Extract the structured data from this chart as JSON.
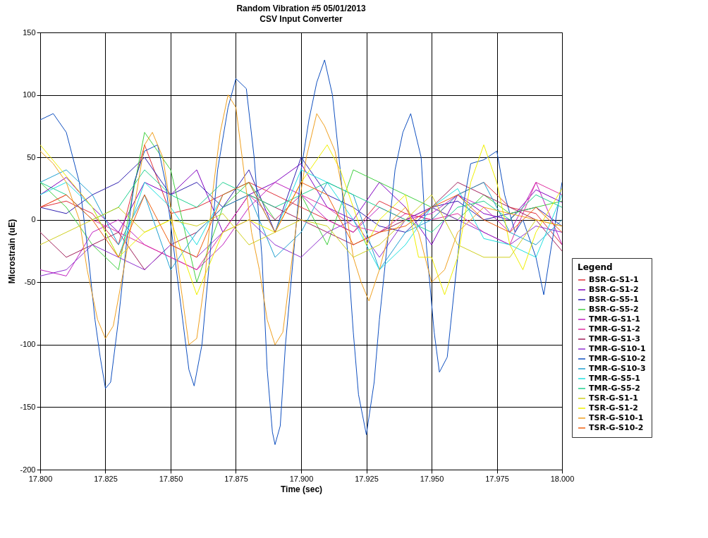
{
  "chart_data": {
    "type": "line",
    "title": "Random Vibration #5 05/01/2013",
    "subtitle": "CSV Input Converter",
    "xlabel": "Time (sec)",
    "ylabel": "Microstrain (uE)",
    "legend_title": "Legend",
    "xlim": [
      17.8,
      18.0
    ],
    "ylim": [
      -200,
      150
    ],
    "xticks": [
      {
        "value": 17.8,
        "label": "17.800"
      },
      {
        "value": 17.825,
        "label": "17.825"
      },
      {
        "value": 17.85,
        "label": "17.850"
      },
      {
        "value": 17.875,
        "label": "17.875"
      },
      {
        "value": 17.9,
        "label": "17.900"
      },
      {
        "value": 17.925,
        "label": "17.925"
      },
      {
        "value": 17.95,
        "label": "17.950"
      },
      {
        "value": 17.975,
        "label": "17.975"
      },
      {
        "value": 18.0,
        "label": "18.000"
      }
    ],
    "yticks": [
      -200,
      -150,
      -100,
      -50,
      0,
      50,
      100,
      150
    ],
    "grid": true,
    "legend": "bottom right",
    "line_style": "solid",
    "x": [
      17.8,
      17.81,
      17.82,
      17.83,
      17.84,
      17.85,
      17.86,
      17.87,
      17.88,
      17.89,
      17.9,
      17.91,
      17.92,
      17.93,
      17.94,
      17.95,
      17.96,
      17.97,
      17.98,
      17.99,
      18.0
    ],
    "series": [
      {
        "name": "BSR-G-S1-1",
        "color": "#e0303a",
        "values": [
          10,
          15,
          5,
          -20,
          60,
          5,
          10,
          20,
          30,
          20,
          10,
          0,
          -10,
          15,
          5,
          0,
          20,
          30,
          10,
          5,
          -20
        ]
      },
      {
        "name": "BSR-G-S1-2",
        "color": "#8000c0",
        "values": [
          20,
          34,
          10,
          -10,
          30,
          20,
          40,
          -10,
          20,
          30,
          45,
          10,
          0,
          30,
          10,
          -20,
          20,
          5,
          0,
          24,
          14
        ]
      },
      {
        "name": "BSR-G-S5-1",
        "color": "#3020b0",
        "values": [
          10,
          5,
          20,
          30,
          50,
          20,
          30,
          10,
          40,
          -10,
          50,
          20,
          10,
          -5,
          -10,
          10,
          15,
          0,
          5,
          10,
          -5
        ]
      },
      {
        "name": "BSR-G-S5-2",
        "color": "#40d040",
        "values": [
          30,
          10,
          -20,
          -40,
          70,
          40,
          -50,
          10,
          30,
          0,
          20,
          -20,
          40,
          30,
          20,
          10,
          0,
          20,
          5,
          10,
          15
        ]
      },
      {
        "name": "TMR-G-S1-1",
        "color": "#c020c0",
        "values": [
          -40,
          -45,
          -10,
          0,
          -20,
          -30,
          -40,
          -20,
          10,
          30,
          20,
          0,
          -10,
          10,
          0,
          5,
          20,
          10,
          -10,
          30,
          -20
        ]
      },
      {
        "name": "TMR-G-S1-2",
        "color": "#e030a0",
        "values": [
          10,
          20,
          0,
          -10,
          -20,
          -30,
          -40,
          -10,
          20,
          0,
          20,
          10,
          -5,
          -10,
          5,
          0,
          5,
          -10,
          -20,
          30,
          20
        ]
      },
      {
        "name": "TMR-G-S1-3",
        "color": "#a0205a",
        "values": [
          -10,
          -30,
          -20,
          -10,
          -40,
          -20,
          -10,
          10,
          20,
          10,
          0,
          -10,
          -20,
          -10,
          0,
          10,
          30,
          20,
          10,
          0,
          -25
        ]
      },
      {
        "name": "TMR-G-S10-1",
        "color": "#9030d0",
        "values": [
          -45,
          -40,
          -20,
          -30,
          -40,
          -20,
          -30,
          -10,
          0,
          -20,
          -30,
          -10,
          0,
          -30,
          0,
          10,
          0,
          -10,
          -20,
          -5,
          -10
        ]
      },
      {
        "name": "TMR-G-S10-2",
        "color": "#1050c0",
        "x": [
          17.8,
          17.805,
          17.81,
          17.815,
          17.818,
          17.821,
          17.823,
          17.825,
          17.827,
          17.83,
          17.833,
          17.836,
          17.84,
          17.845,
          17.848,
          17.851,
          17.854,
          17.857,
          17.859,
          17.862,
          17.865,
          17.868,
          17.872,
          17.875,
          17.879,
          17.882,
          17.885,
          17.887,
          17.889,
          17.89,
          17.892,
          17.894,
          17.897,
          17.9,
          17.903,
          17.906,
          17.909,
          17.912,
          17.915,
          17.918,
          17.92,
          17.922,
          17.925,
          17.928,
          17.93,
          17.933,
          17.936,
          17.939,
          17.942,
          17.946,
          17.948,
          17.951,
          17.953,
          17.956,
          17.959,
          17.962,
          17.965,
          17.97,
          17.975,
          17.978,
          17.982,
          17.985,
          17.99,
          17.993,
          17.996,
          18.0
        ],
        "values": [
          80,
          85,
          70,
          30,
          -20,
          -80,
          -110,
          -135,
          -130,
          -80,
          -20,
          30,
          55,
          60,
          30,
          -20,
          -70,
          -120,
          -133,
          -100,
          -30,
          40,
          90,
          113,
          105,
          50,
          -30,
          -120,
          -170,
          -180,
          -165,
          -100,
          -30,
          40,
          80,
          110,
          128,
          100,
          40,
          -30,
          -90,
          -140,
          -172,
          -130,
          -80,
          -20,
          40,
          70,
          85,
          50,
          -20,
          -90,
          -122,
          -110,
          -50,
          10,
          45,
          48,
          55,
          20,
          -10,
          0,
          -30,
          -60,
          -20,
          30
        ]
      },
      {
        "name": "TMR-G-S10-3",
        "color": "#20a0d0",
        "values": [
          30,
          40,
          20,
          -20,
          20,
          -40,
          -10,
          10,
          20,
          -30,
          -10,
          30,
          20,
          -40,
          -10,
          0,
          20,
          30,
          -10,
          -20,
          0
        ]
      },
      {
        "name": "TMR-G-S5-1",
        "color": "#20e0e0",
        "values": [
          20,
          30,
          10,
          -30,
          30,
          10,
          -20,
          20,
          30,
          -10,
          40,
          30,
          0,
          -40,
          -20,
          10,
          25,
          -15,
          -20,
          -30,
          20
        ]
      },
      {
        "name": "TMR-G-S5-2",
        "color": "#20d090",
        "values": [
          30,
          20,
          0,
          10,
          40,
          20,
          10,
          30,
          20,
          10,
          20,
          30,
          20,
          10,
          0,
          -10,
          10,
          15,
          0,
          20,
          10
        ]
      },
      {
        "name": "TSR-G-S1-1",
        "color": "#d0d020",
        "values": [
          -20,
          -10,
          0,
          10,
          -10,
          0,
          -5,
          5,
          -20,
          -10,
          0,
          -5,
          -30,
          -20,
          0,
          20,
          -20,
          -30,
          -30,
          0,
          -5
        ]
      },
      {
        "name": "TSR-G-S1-2",
        "color": "#f0f000",
        "x": [
          17.8,
          17.81,
          17.82,
          17.83,
          17.84,
          17.85,
          17.86,
          17.87,
          17.88,
          17.89,
          17.9,
          17.91,
          17.915,
          17.92,
          17.925,
          17.93,
          17.94,
          17.945,
          17.95,
          17.955,
          17.96,
          17.965,
          17.97,
          17.975,
          17.98,
          17.985,
          17.99,
          18.0
        ],
        "values": [
          60,
          35,
          10,
          -30,
          -10,
          0,
          -60,
          -10,
          0,
          -10,
          30,
          60,
          40,
          10,
          -20,
          0,
          20,
          -30,
          -30,
          -60,
          -30,
          30,
          60,
          30,
          -20,
          -40,
          -10,
          25
        ]
      },
      {
        "name": "TSR-G-S10-1",
        "color": "#f0a020",
        "x": [
          17.8,
          17.805,
          17.81,
          17.815,
          17.818,
          17.822,
          17.825,
          17.828,
          17.832,
          17.836,
          17.84,
          17.843,
          17.847,
          17.85,
          17.853,
          17.857,
          17.86,
          17.863,
          17.866,
          17.869,
          17.872,
          17.875,
          17.878,
          17.881,
          17.884,
          17.887,
          17.89,
          17.893,
          17.896,
          17.899,
          17.902,
          17.906,
          17.909,
          17.913,
          17.917,
          17.92,
          17.923,
          17.926,
          17.93,
          17.935,
          17.94,
          17.945,
          17.95,
          17.955,
          17.96,
          17.97,
          17.98,
          17.99,
          18.0
        ],
        "values": [
          55,
          45,
          30,
          0,
          -40,
          -80,
          -95,
          -85,
          -40,
          10,
          60,
          70,
          50,
          10,
          -40,
          -100,
          -95,
          -50,
          20,
          70,
          100,
          90,
          40,
          -10,
          -40,
          -80,
          -100,
          -90,
          -40,
          10,
          50,
          85,
          75,
          55,
          10,
          -30,
          -50,
          -65,
          -40,
          0,
          10,
          -10,
          -50,
          -40,
          -10,
          10,
          5,
          0,
          -5
        ]
      },
      {
        "name": "TSR-G-S10-2",
        "color": "#f06010",
        "values": [
          10,
          20,
          0,
          -30,
          20,
          -20,
          -30,
          20,
          30,
          -10,
          30,
          20,
          -20,
          -10,
          -5,
          10,
          20,
          0,
          -10,
          10,
          -10
        ]
      }
    ]
  }
}
